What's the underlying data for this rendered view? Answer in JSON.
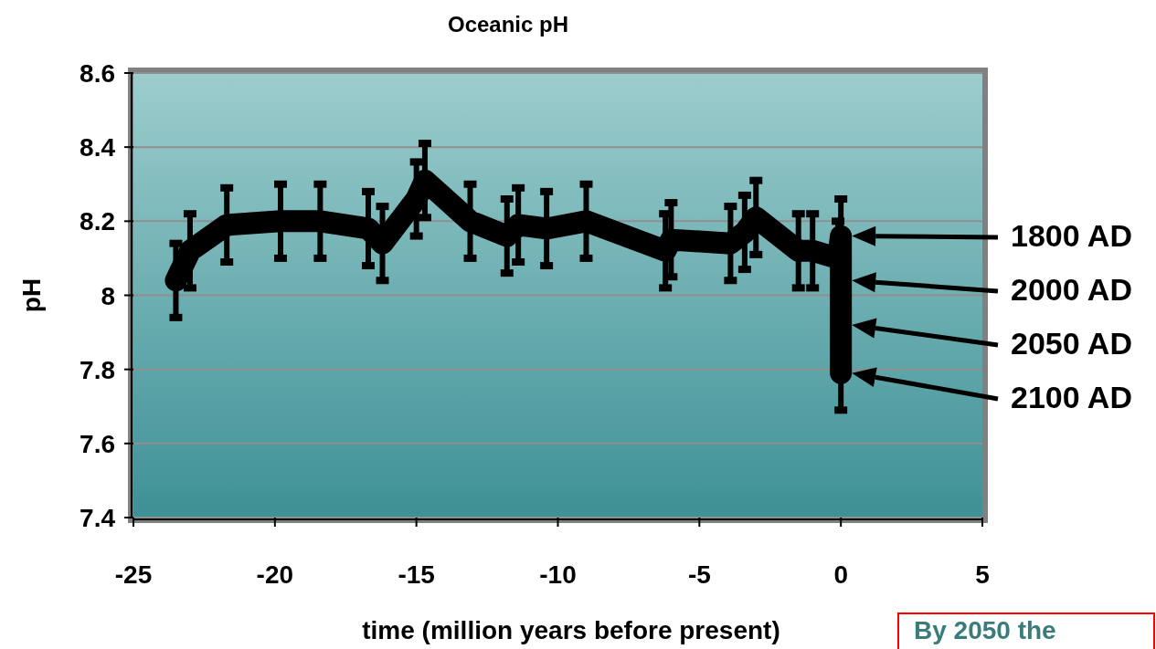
{
  "chart_data": {
    "type": "line",
    "title": "Oceanic pH",
    "xlabel": "time (million years before present)",
    "ylabel": "pH",
    "xlim": [
      -25,
      5
    ],
    "xticks": [
      -25,
      -20,
      -15,
      -10,
      -5,
      0,
      5
    ],
    "ylim": [
      7.4,
      8.6
    ],
    "yticks": [
      7.4,
      7.6,
      7.8,
      8,
      8.2,
      8.4,
      8.6
    ],
    "grid": "y",
    "line_style": "solid",
    "series": [
      {
        "color": "#000000",
        "x": [
          -23.5,
          -23.0,
          -21.7,
          -19.8,
          -18.4,
          -16.7,
          -16.2,
          -15.0,
          -14.7,
          -13.1,
          -11.8,
          -11.4,
          -10.4,
          -9.0,
          -6.2,
          -6.0,
          -3.9,
          -3.4,
          -3.0,
          -1.5,
          -1.0,
          -0.1,
          0,
          0,
          0,
          0
        ],
        "values": [
          8.04,
          8.12,
          8.19,
          8.2,
          8.2,
          8.18,
          8.14,
          8.26,
          8.31,
          8.2,
          8.16,
          8.19,
          8.18,
          8.2,
          8.12,
          8.15,
          8.14,
          8.17,
          8.21,
          8.12,
          8.12,
          8.1,
          8.16,
          8.04,
          7.92,
          7.79
        ],
        "errors": [
          0.1,
          0.1,
          0.1,
          0.1,
          0.1,
          0.1,
          0.1,
          0.1,
          0.1,
          0.1,
          0.1,
          0.1,
          0.1,
          0.1,
          0.1,
          0.1,
          0.1,
          0.1,
          0.1,
          0.1,
          0.1,
          0.1,
          0.1,
          0.1,
          0.1,
          0.1
        ]
      }
    ],
    "annotations": [
      "1800 AD",
      "2000 AD",
      "2050 AD",
      "2100 AD",
      "By 2050 the"
    ]
  }
}
